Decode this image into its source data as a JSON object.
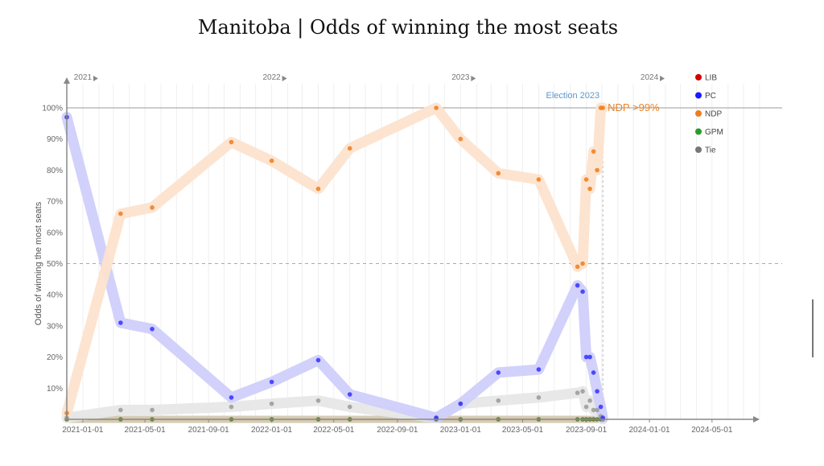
{
  "chart_data": {
    "type": "line",
    "title": "Manitoba | Odds of winning the most seats",
    "ylabel": "Odds of winning the most seats",
    "ylim": [
      0,
      100
    ],
    "y_ticks": [
      "10%",
      "20%",
      "30%",
      "40%",
      "50%",
      "60%",
      "70%",
      "80%",
      "90%",
      "100%"
    ],
    "x_ticks": [
      "2021-01-01",
      "2021-05-01",
      "2021-09-01",
      "2022-01-01",
      "2022-05-01",
      "2022-09-01",
      "2023-01-01",
      "2023-05-01",
      "2023-09-01",
      "2024-01-01",
      "2024-05-01"
    ],
    "year_labels": [
      "2021",
      "2022",
      "2023",
      "2024"
    ],
    "reference_line_y": 50,
    "event": {
      "label": "Election 2023",
      "date": "2023-10-03"
    },
    "annotation": {
      "text": "NDP >99%",
      "color": "#e8822a"
    },
    "legend": [
      {
        "name": "LIB",
        "color": "#d40000"
      },
      {
        "name": "PC",
        "color": "#1a1aff"
      },
      {
        "name": "NDP",
        "color": "#f07c1c"
      },
      {
        "name": "GPM",
        "color": "#2a9a2a"
      },
      {
        "name": "Tie",
        "color": "#777777"
      }
    ],
    "x": [
      "2020-12-01",
      "2021-03-15",
      "2021-05-15",
      "2021-10-15",
      "2022-01-01",
      "2022-04-01",
      "2022-06-01",
      "2022-11-15",
      "2023-01-01",
      "2023-03-15",
      "2023-06-01",
      "2023-08-15",
      "2023-08-25",
      "2023-09-01",
      "2023-09-08",
      "2023-09-15",
      "2023-09-22",
      "2023-09-29",
      "2023-10-03"
    ],
    "series": [
      {
        "name": "NDP",
        "color": "#f07c1c",
        "band_color": "#fde3cd",
        "values": [
          2,
          66,
          68,
          89,
          83,
          74,
          87,
          100,
          90,
          79,
          77,
          49,
          50,
          77,
          74,
          86,
          80,
          100,
          100
        ]
      },
      {
        "name": "PC",
        "color": "#3333ff",
        "band_color": "#cfcffb",
        "values": [
          97,
          31,
          29,
          7,
          12,
          19,
          8,
          0.5,
          5,
          15,
          16,
          43,
          41,
          20,
          20,
          15,
          9,
          4,
          0.5
        ]
      },
      {
        "name": "Tie",
        "color": "#999999",
        "band_color": "#e7e7e7",
        "values": [
          0.5,
          3,
          3,
          4,
          5,
          6,
          4,
          0.5,
          5,
          6,
          7,
          8.5,
          9,
          4,
          6,
          3,
          3,
          1,
          0
        ]
      },
      {
        "name": "GPM",
        "color": "#557733",
        "band_color": "#d4c8ae",
        "values": [
          0,
          0,
          0,
          0,
          0,
          0,
          0,
          0,
          0,
          0,
          0,
          0,
          0,
          0,
          0,
          0,
          0,
          0,
          0
        ]
      }
    ]
  }
}
